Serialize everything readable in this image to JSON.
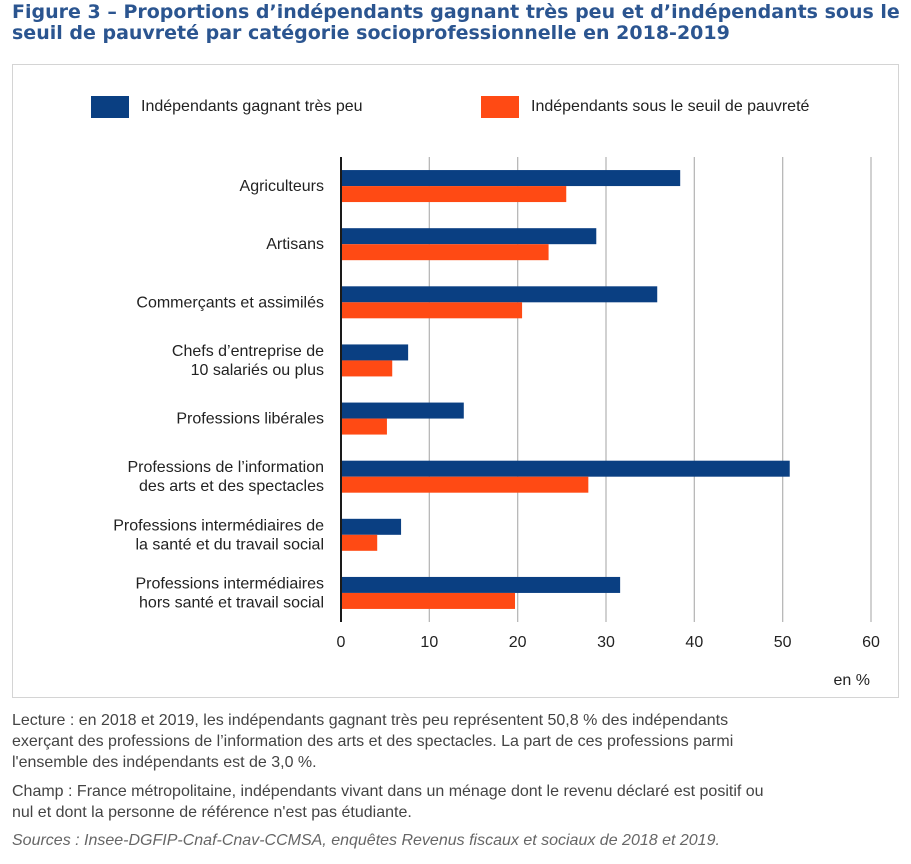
{
  "title": {
    "line1": "Figure 3 – Proportions d’indépendants gagnant très peu et d’indépendants sous le",
    "line2": "seuil de pauvreté par catégorie socioprofessionnelle en 2018-2019"
  },
  "colors": {
    "series1": "#0a3f82",
    "series2": "#ff4a14",
    "gridline": "#b8b8b8",
    "axis": "#1a1a1a"
  },
  "chart_data": {
    "type": "bar",
    "orientation": "horizontal",
    "categories": [
      [
        "Agriculteurs"
      ],
      [
        "Artisans"
      ],
      [
        "Commerçants et assimilés"
      ],
      [
        "Chefs d’entreprise de",
        "10 salariés ou plus"
      ],
      [
        "Professions libérales"
      ],
      [
        "Professions de l’information",
        "des arts et des spectacles"
      ],
      [
        "Professions intermédiaires de",
        "la santé et du travail social"
      ],
      [
        "Professions intermédiaires",
        "hors santé et travail social"
      ]
    ],
    "series": [
      {
        "name": "Indépendants gagnant très peu",
        "values": [
          38.4,
          28.9,
          35.8,
          7.6,
          13.9,
          50.8,
          6.8,
          31.6
        ]
      },
      {
        "name": "Indépendants sous le seuil de pauvreté",
        "values": [
          25.5,
          23.5,
          20.5,
          5.8,
          5.2,
          28.0,
          4.1,
          19.7
        ]
      }
    ],
    "xlim": [
      0,
      60
    ],
    "xticks": [
      0,
      10,
      20,
      30,
      40,
      50,
      60
    ],
    "xlabel": "en %",
    "grid": true,
    "legend_position": "top"
  },
  "footnotes": {
    "lecture": [
      "Lecture : en 2018 et 2019, les indépendants gagnant très peu représentent 50,8 % des indépendants",
      "exerçant des professions de l’information des arts et des spectacles. La part de ces professions parmi",
      "l'ensemble des indépendants est de 3,0 %."
    ],
    "champ": [
      "Champ : France métropolitaine, indépendants vivant dans un ménage dont le revenu déclaré est positif ou",
      "nul et dont la personne de référence n'est pas étudiante."
    ],
    "sources": "Sources : Insee-DGFIP-Cnaf-Cnav-CCMSA, enquêtes Revenus fiscaux et sociaux de 2018 et 2019."
  }
}
